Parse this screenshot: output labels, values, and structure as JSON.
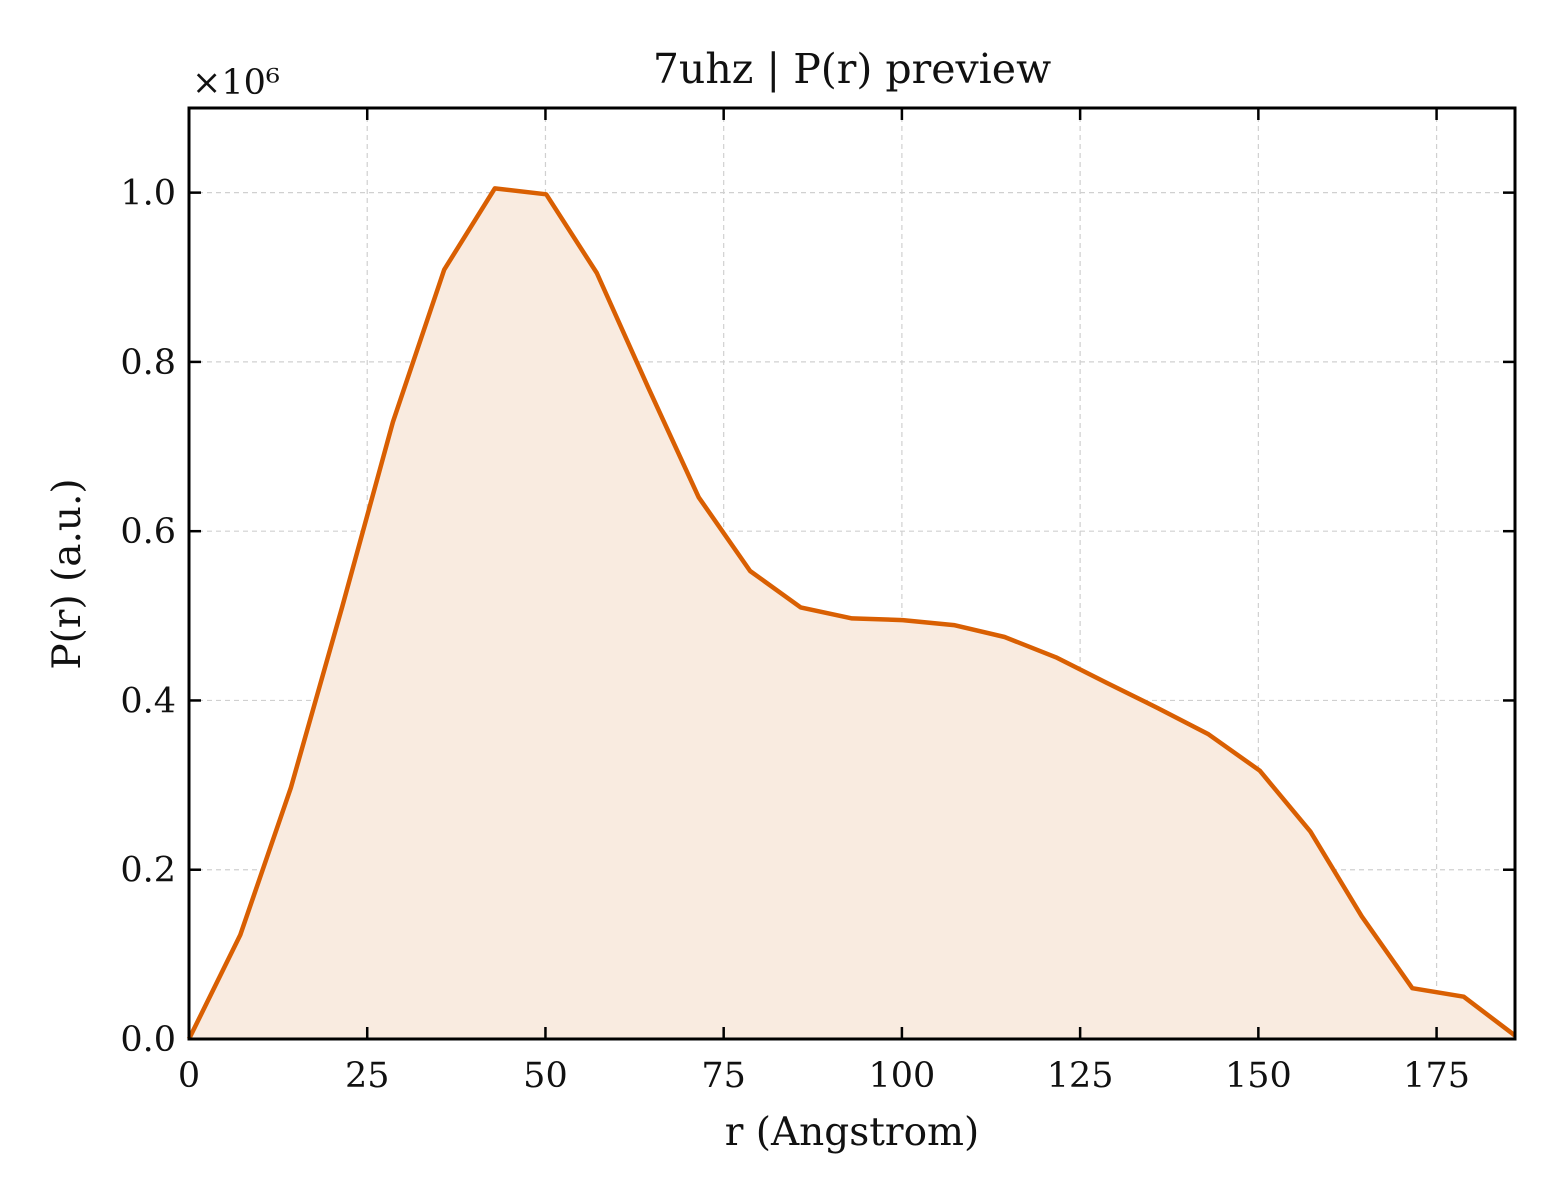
{
  "chart_data": {
    "type": "area",
    "title": "7uhz | P(r) preview",
    "xlabel": "r (Angstrom)",
    "ylabel": "P(r) (a.u.)",
    "y_multiplier": "×10⁶",
    "xlim": [
      0,
      186
    ],
    "ylim": [
      0,
      1.1
    ],
    "x_ticks": [
      0,
      25,
      50,
      75,
      100,
      125,
      150,
      175
    ],
    "y_ticks": [
      0.0,
      0.2,
      0.4,
      0.6,
      0.8,
      1.0
    ],
    "grid": true,
    "line_color": "#d95f02",
    "fill_color": "#f9ebe0",
    "series": [
      {
        "x": [
          0,
          7.2,
          14.3,
          21.5,
          28.6,
          35.8,
          42.9,
          50.1,
          57.2,
          64.4,
          71.5,
          78.7,
          85.8,
          93.0,
          100.1,
          107.3,
          114.4,
          121.6,
          128.7,
          135.9,
          143.0,
          150.2,
          157.3,
          164.5,
          171.6,
          178.8,
          186.0
        ],
        "y": [
          0.0,
          0.123,
          0.297,
          0.511,
          0.729,
          0.909,
          1.005,
          0.998,
          0.905,
          0.77,
          0.64,
          0.553,
          0.51,
          0.497,
          0.495,
          0.489,
          0.475,
          0.451,
          0.421,
          0.391,
          0.36,
          0.317,
          0.245,
          0.145,
          0.06,
          0.05,
          0.004
        ]
      }
    ]
  }
}
